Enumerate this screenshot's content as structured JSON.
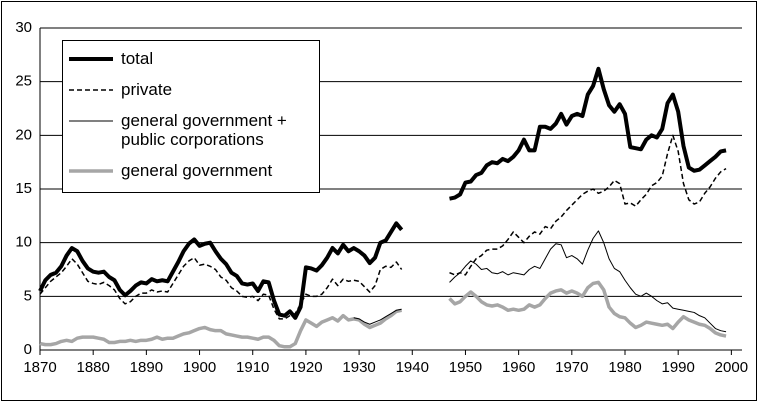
{
  "chart_data": {
    "type": "line",
    "x": [
      1870,
      1871,
      1872,
      1873,
      1874,
      1875,
      1876,
      1877,
      1878,
      1879,
      1880,
      1881,
      1882,
      1883,
      1884,
      1885,
      1886,
      1887,
      1888,
      1889,
      1890,
      1891,
      1892,
      1893,
      1894,
      1895,
      1896,
      1897,
      1898,
      1899,
      1900,
      1901,
      1902,
      1903,
      1904,
      1905,
      1906,
      1907,
      1908,
      1909,
      1910,
      1911,
      1912,
      1913,
      1914,
      1915,
      1916,
      1917,
      1918,
      1919,
      1920,
      1921,
      1922,
      1923,
      1924,
      1925,
      1926,
      1927,
      1928,
      1929,
      1930,
      1931,
      1932,
      1933,
      1934,
      1935,
      1936,
      1937,
      1938,
      1939,
      1940,
      1941,
      1942,
      1943,
      1944,
      1945,
      1946,
      1947,
      1948,
      1949,
      1950,
      1951,
      1952,
      1953,
      1954,
      1955,
      1956,
      1957,
      1958,
      1959,
      1960,
      1961,
      1962,
      1963,
      1964,
      1965,
      1966,
      1967,
      1968,
      1969,
      1970,
      1971,
      1972,
      1973,
      1974,
      1975,
      1976,
      1977,
      1978,
      1979,
      1980,
      1981,
      1982,
      1983,
      1984,
      1985,
      1986,
      1987,
      1988,
      1989,
      1990,
      1991,
      1992,
      1993,
      1994,
      1995,
      1996,
      1997,
      1998,
      1999
    ],
    "series": [
      {
        "name": "general government",
        "color": "#a6a6a6",
        "line_width": 3.5,
        "dash": "solid",
        "values": [
          0.6,
          0.5,
          0.5,
          0.6,
          0.8,
          0.9,
          0.8,
          1.1,
          1.2,
          1.2,
          1.2,
          1.1,
          1.0,
          0.7,
          0.7,
          0.8,
          0.8,
          0.9,
          0.8,
          0.9,
          0.9,
          1.0,
          1.2,
          1.0,
          1.1,
          1.1,
          1.3,
          1.5,
          1.6,
          1.8,
          2.0,
          2.1,
          1.9,
          1.8,
          1.8,
          1.5,
          1.4,
          1.3,
          1.2,
          1.2,
          1.1,
          1.0,
          1.2,
          1.2,
          0.9,
          0.4,
          0.3,
          0.3,
          0.6,
          1.8,
          2.8,
          2.5,
          2.2,
          2.6,
          2.8,
          3.0,
          2.7,
          3.2,
          2.8,
          2.9,
          2.8,
          2.4,
          2.1,
          2.3,
          2.5,
          2.9,
          3.2,
          3.6,
          3.7,
          null,
          null,
          null,
          null,
          null,
          null,
          null,
          null,
          4.8,
          4.3,
          4.5,
          5.0,
          5.4,
          5.0,
          4.5,
          4.2,
          4.1,
          4.2,
          4.0,
          3.7,
          3.8,
          3.7,
          3.8,
          4.2,
          4.0,
          4.2,
          4.8,
          5.3,
          5.5,
          5.6,
          5.3,
          5.5,
          5.3,
          5.0,
          5.8,
          6.2,
          6.3,
          5.6,
          4.0,
          3.4,
          3.1,
          3.0,
          2.5,
          2.1,
          2.3,
          2.6,
          2.5,
          2.4,
          2.3,
          2.4,
          2.0,
          2.6,
          3.1,
          2.8,
          2.6,
          2.4,
          2.3,
          2.0,
          1.6,
          1.4,
          1.3
        ]
      },
      {
        "name": "general government + public corporations",
        "color": "#000000",
        "line_width": 1,
        "dash": "solid",
        "values": [
          null,
          null,
          null,
          null,
          null,
          null,
          null,
          null,
          null,
          null,
          null,
          null,
          null,
          null,
          null,
          null,
          null,
          null,
          null,
          null,
          null,
          null,
          null,
          null,
          null,
          null,
          null,
          null,
          null,
          null,
          null,
          null,
          null,
          null,
          null,
          null,
          null,
          null,
          null,
          null,
          null,
          null,
          null,
          null,
          null,
          null,
          null,
          null,
          null,
          null,
          null,
          null,
          null,
          null,
          null,
          null,
          null,
          null,
          null,
          3.0,
          2.9,
          2.6,
          2.4,
          2.6,
          2.8,
          3.1,
          3.4,
          3.7,
          3.8,
          null,
          null,
          null,
          null,
          null,
          null,
          null,
          null,
          6.3,
          6.8,
          7.2,
          7.8,
          8.3,
          8.0,
          7.5,
          7.6,
          7.2,
          7.1,
          7.3,
          7.0,
          7.2,
          7.1,
          7.0,
          7.5,
          7.8,
          7.6,
          8.5,
          9.4,
          9.9,
          9.8,
          8.6,
          8.8,
          8.5,
          8.0,
          9.3,
          10.4,
          11.1,
          10.0,
          8.5,
          7.6,
          7.3,
          6.5,
          5.8,
          5.2,
          5.0,
          5.3,
          5.0,
          4.6,
          4.3,
          4.4,
          3.9,
          3.8,
          3.7,
          3.6,
          3.5,
          3.2,
          3.0,
          2.5,
          2.0,
          1.8,
          1.7
        ]
      },
      {
        "name": "private",
        "color": "#000000",
        "line_width": 1.5,
        "dash": "dashed",
        "values": [
          5.2,
          5.8,
          6.4,
          6.8,
          7.2,
          7.8,
          8.5,
          8.0,
          7.2,
          6.4,
          6.2,
          6.1,
          6.3,
          6.0,
          5.6,
          4.8,
          4.3,
          4.5,
          5.0,
          5.3,
          5.3,
          5.6,
          5.4,
          5.5,
          5.4,
          6.2,
          7.0,
          7.8,
          8.3,
          8.6,
          7.9,
          8.0,
          7.8,
          7.5,
          6.8,
          6.5,
          5.8,
          5.5,
          5.0,
          4.9,
          5.0,
          4.6,
          5.2,
          5.1,
          3.8,
          2.9,
          2.9,
          3.2,
          3.4,
          4.3,
          5.2,
          5.0,
          5.0,
          5.2,
          5.8,
          6.6,
          6.0,
          6.6,
          6.4,
          6.5,
          6.4,
          5.9,
          5.4,
          6.0,
          7.5,
          7.8,
          7.7,
          8.2,
          7.5,
          null,
          null,
          null,
          null,
          null,
          null,
          null,
          null,
          7.2,
          7.0,
          7.2,
          7.0,
          7.8,
          8.5,
          8.8,
          9.3,
          9.4,
          9.4,
          9.7,
          10.3,
          11.0,
          10.5,
          10.0,
          10.6,
          11.0,
          10.8,
          11.5,
          11.3,
          12.0,
          12.4,
          13.0,
          13.5,
          14.0,
          14.5,
          14.8,
          15.0,
          14.6,
          14.8,
          15.2,
          15.8,
          15.5,
          13.6,
          13.7,
          13.4,
          14.0,
          14.5,
          15.3,
          15.6,
          16.2,
          18.3,
          20.0,
          18.5,
          15.5,
          14.0,
          13.6,
          13.8,
          14.6,
          15.2,
          16.0,
          16.6,
          16.9
        ]
      },
      {
        "name": "total",
        "color": "#000000",
        "line_width": 4,
        "dash": "solid",
        "values": [
          5.5,
          6.5,
          7.0,
          7.2,
          7.8,
          8.8,
          9.5,
          9.2,
          8.3,
          7.6,
          7.3,
          7.2,
          7.3,
          6.8,
          6.5,
          5.6,
          5.1,
          5.5,
          6.0,
          6.3,
          6.2,
          6.6,
          6.4,
          6.5,
          6.4,
          7.3,
          8.2,
          9.2,
          9.9,
          10.3,
          9.7,
          9.9,
          10.0,
          9.2,
          8.5,
          8.0,
          7.2,
          6.9,
          6.2,
          6.1,
          6.2,
          5.5,
          6.4,
          6.3,
          4.6,
          3.3,
          3.2,
          3.6,
          3.0,
          4.0,
          7.7,
          7.6,
          7.4,
          7.9,
          8.6,
          9.5,
          9.0,
          9.8,
          9.2,
          9.5,
          9.2,
          8.8,
          8.1,
          8.6,
          10.0,
          10.2,
          11.0,
          11.8,
          11.2,
          null,
          null,
          null,
          null,
          null,
          null,
          null,
          null,
          14.1,
          14.2,
          14.5,
          15.6,
          15.7,
          16.3,
          16.5,
          17.2,
          17.5,
          17.4,
          17.8,
          17.6,
          18.0,
          18.6,
          19.6,
          18.6,
          18.6,
          20.8,
          20.8,
          20.6,
          21.1,
          22.0,
          21.0,
          21.8,
          22.0,
          21.8,
          23.8,
          24.6,
          26.2,
          24.3,
          22.8,
          22.2,
          22.9,
          22.0,
          18.9,
          18.8,
          18.7,
          19.6,
          20.0,
          19.8,
          20.6,
          23.0,
          23.8,
          22.2,
          19.0,
          17.0,
          16.7,
          16.8,
          17.2,
          17.6,
          18.0,
          18.5,
          18.6
        ]
      }
    ],
    "legend_order": [
      3,
      2,
      1,
      0
    ],
    "xlim": [
      1870,
      2002
    ],
    "xticks": [
      1870,
      1880,
      1890,
      1900,
      1910,
      1920,
      1930,
      1940,
      1950,
      1960,
      1970,
      1980,
      1990,
      2000
    ],
    "ylim": [
      0,
      30
    ],
    "yticks": [
      0,
      5,
      10,
      15,
      20,
      25,
      30
    ],
    "grid": true
  }
}
